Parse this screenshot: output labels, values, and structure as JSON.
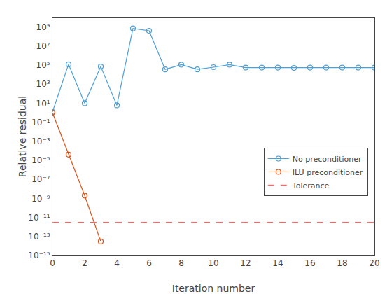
{
  "chart_data": {
    "type": "line",
    "xlabel": "Iteration number",
    "ylabel": "Relative residual",
    "log": "y",
    "grid": false,
    "legend": "lower right",
    "xlim": [
      0,
      20
    ],
    "ylim": [
      1e-15,
      10000000000.0
    ],
    "xticks": [
      0,
      2,
      4,
      6,
      8,
      10,
      12,
      14,
      16,
      18,
      20
    ],
    "yticks": [
      {
        "value": 1e-15,
        "label": "10⁻¹⁵"
      },
      {
        "value": 1e-13,
        "label": "10⁻¹³"
      },
      {
        "value": 1e-11,
        "label": "10⁻¹¹"
      },
      {
        "value": 1e-09,
        "label": "10⁻⁹"
      },
      {
        "value": 1e-07,
        "label": "10⁻⁷"
      },
      {
        "value": 1e-05,
        "label": "10⁻⁵"
      },
      {
        "value": 0.001,
        "label": "10⁻³"
      },
      {
        "value": 0.1,
        "label": "10⁻¹"
      },
      {
        "value": 10.0,
        "label": "10¹"
      },
      {
        "value": 1000.0,
        "label": "10³"
      },
      {
        "value": 100000.0,
        "label": "10⁵"
      },
      {
        "value": 10000000.0,
        "label": "10⁷"
      },
      {
        "value": 1000000000.0,
        "label": "10⁹"
      }
    ],
    "series": [
      {
        "name": "No preconditioner",
        "color": "#4d9fd6",
        "marker": "circle-open",
        "line_style": "solid",
        "x": [
          0,
          1,
          2,
          3,
          4,
          5,
          6,
          7,
          8,
          9,
          10,
          11,
          12,
          13,
          14,
          15,
          16,
          17,
          18,
          19,
          20
        ],
        "values": [
          1.2,
          120000.0,
          10.0,
          70000.0,
          6.0,
          700000000.0,
          400000000.0,
          35000.0,
          110000.0,
          35000.0,
          60000.0,
          110000.0,
          55000.0,
          55000.0,
          55000.0,
          50000.0,
          55000.0,
          55000.0,
          55000.0,
          55000.0,
          55000.0
        ]
      },
      {
        "name": "ILU preconditioner",
        "color": "#d95319",
        "marker": "circle-open",
        "line_style": "solid",
        "x": [
          0,
          1,
          2,
          3
        ],
        "values": [
          1.0,
          4e-05,
          2e-09,
          3e-14
        ]
      },
      {
        "name": "Tolerance",
        "color": "#ff6666",
        "type": "hline",
        "line_style": "dashed",
        "value": 3e-12
      }
    ]
  }
}
